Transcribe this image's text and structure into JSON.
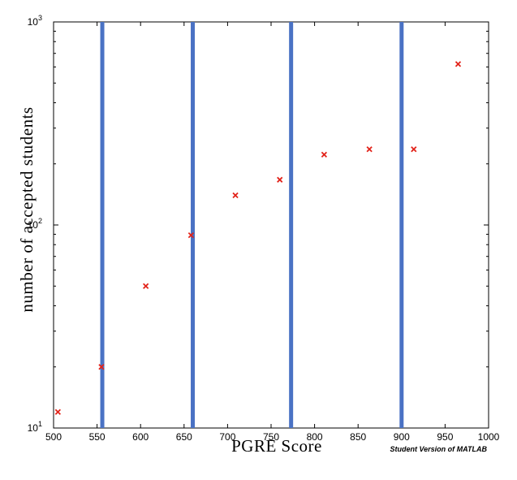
{
  "chart_data": {
    "type": "scatter",
    "title": "",
    "xlabel": "PGRE Score",
    "ylabel": "number of accepted students",
    "xlim": [
      500,
      1000
    ],
    "ylim": [
      10,
      1000
    ],
    "yscale": "log",
    "x_ticks": [
      500,
      550,
      600,
      650,
      700,
      750,
      800,
      850,
      900,
      950,
      1000
    ],
    "y_ticks": [
      {
        "value": 10,
        "base": "10",
        "exp": "1"
      },
      {
        "value": 100,
        "base": "10",
        "exp": "2"
      },
      {
        "value": 1000,
        "base": "10",
        "exp": "3"
      }
    ],
    "grid": false,
    "marker": "x",
    "marker_color": "#e2231a",
    "line_color": "#4a72c4",
    "points": [
      {
        "x": 505,
        "y": 12
      },
      {
        "x": 555,
        "y": 20
      },
      {
        "x": 606,
        "y": 50
      },
      {
        "x": 658,
        "y": 89
      },
      {
        "x": 709,
        "y": 140
      },
      {
        "x": 760,
        "y": 167
      },
      {
        "x": 811,
        "y": 222
      },
      {
        "x": 863,
        "y": 236
      },
      {
        "x": 914,
        "y": 236
      },
      {
        "x": 965,
        "y": 620
      }
    ],
    "vertical_lines": [
      556,
      660,
      773,
      900
    ],
    "annotations": [
      "Student Version of MATLAB"
    ]
  }
}
